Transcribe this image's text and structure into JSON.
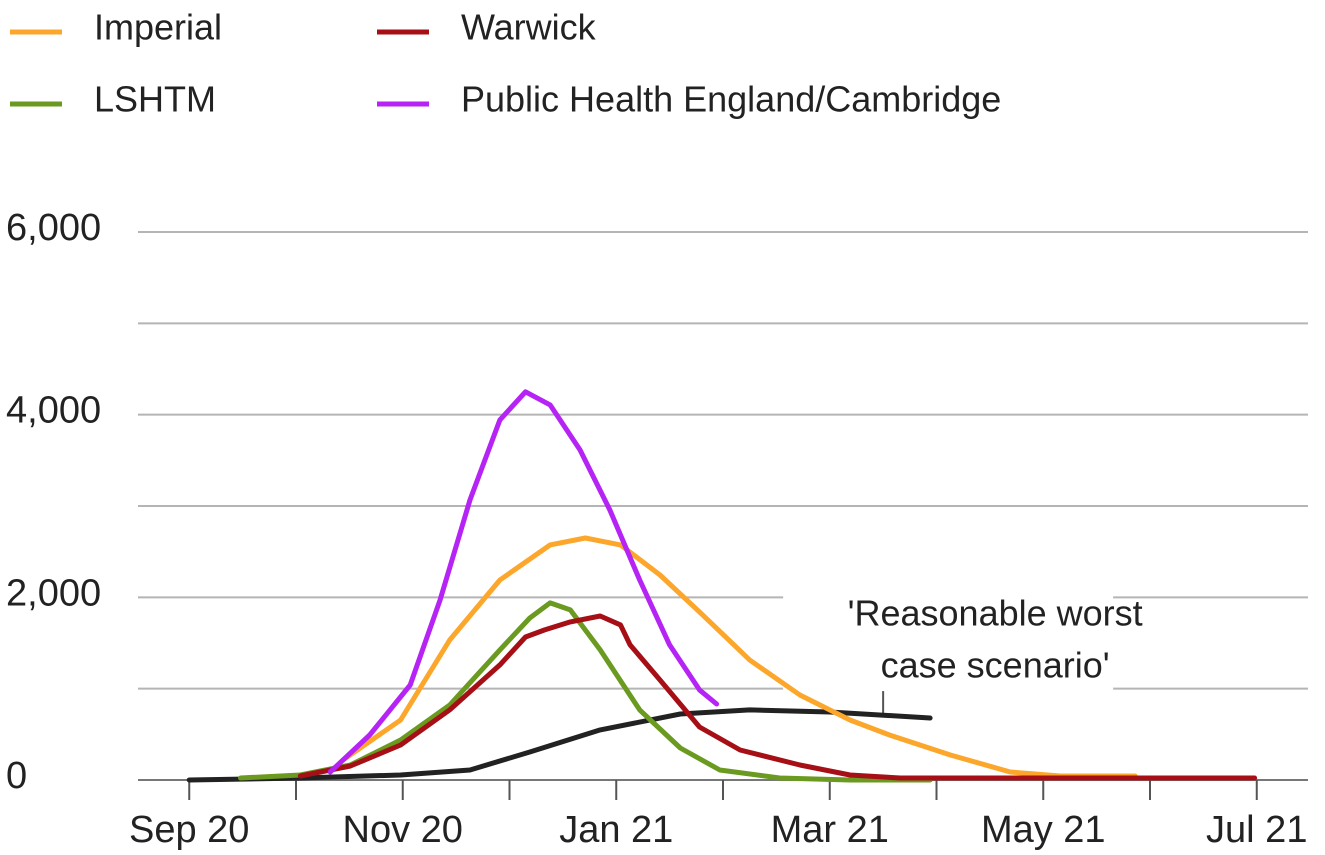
{
  "chart_data": {
    "type": "line",
    "xlim": [
      -0.48,
      10.48
    ],
    "xticks": [
      {
        "value": 0,
        "label": "Sep 20"
      },
      {
        "value": 2,
        "label": "Nov 20"
      },
      {
        "value": 4,
        "label": "Jan 21"
      },
      {
        "value": 6,
        "label": "Mar 21"
      },
      {
        "value": 8,
        "label": "May 21"
      },
      {
        "value": 10,
        "label": "Jul 21"
      }
    ],
    "xminor_ticks": [
      1,
      3,
      5,
      7,
      9
    ],
    "ylim": [
      0,
      6000
    ],
    "yticks": [
      0,
      {
        "value": 2000,
        "label": "2,000"
      },
      {
        "value": 4000,
        "label": "4,000"
      },
      {
        "value": 6000,
        "label": "6,000"
      }
    ],
    "yminor_grid": [
      1000,
      3000,
      5000
    ],
    "grid": true,
    "annotation": {
      "lines": [
        "'Reasonable worst",
        "case scenario'"
      ],
      "x": 6.5,
      "y": 700
    },
    "series": [
      {
        "name": "Imperial",
        "color": "#fca72b",
        "x": [
          1.44,
          1.98,
          2.44,
          2.91,
          3.38,
          3.71,
          4.04,
          4.41,
          4.78,
          5.25,
          5.72,
          6.19,
          6.56,
          7.13,
          7.69,
          8.16,
          8.86
        ],
        "values": [
          219,
          657,
          1533,
          2190,
          2574,
          2650,
          2574,
          2245,
          1840,
          1314,
          931,
          657,
          493,
          274,
          88,
          44,
          44
        ]
      },
      {
        "name": "LSHTM",
        "color": "#6a9a1f",
        "x": [
          0.48,
          1.04,
          1.51,
          1.98,
          2.44,
          2.91,
          3.19,
          3.38,
          3.57,
          3.85,
          4.22,
          4.6,
          4.97,
          5.53,
          6.19,
          6.94
        ],
        "values": [
          22,
          55,
          164,
          438,
          821,
          1424,
          1774,
          1939,
          1862,
          1424,
          767,
          350,
          110,
          22,
          0,
          0
        ]
      },
      {
        "name": "Warwick",
        "color": "#a50f15",
        "x": [
          1.04,
          1.51,
          1.98,
          2.44,
          2.91,
          3.15,
          3.33,
          3.57,
          3.85,
          4.04,
          4.13,
          4.41,
          4.78,
          5.16,
          5.72,
          6.19,
          6.66,
          7.59,
          9.98
        ],
        "values": [
          44,
          153,
          383,
          767,
          1260,
          1566,
          1643,
          1731,
          1796,
          1698,
          1479,
          1095,
          580,
          329,
          164,
          55,
          22,
          22,
          22
        ]
      },
      {
        "name": "Public Health England/Cambridge",
        "color": "#b623f5",
        "x": [
          1.32,
          1.69,
          2.07,
          2.35,
          2.63,
          2.91,
          3.15,
          3.38,
          3.66,
          3.94,
          4.22,
          4.5,
          4.78,
          4.94
        ],
        "values": [
          88,
          493,
          1040,
          1972,
          3067,
          3943,
          4250,
          4107,
          3614,
          2957,
          2190,
          1479,
          986,
          832
        ]
      },
      {
        "color": "#222222",
        "x": [
          0,
          1.04,
          1.98,
          2.63,
          3.19,
          3.85,
          4.6,
          5.25,
          6.0,
          6.94
        ],
        "values": [
          0,
          22,
          55,
          110,
          307,
          548,
          723,
          767,
          745,
          679
        ]
      }
    ]
  }
}
